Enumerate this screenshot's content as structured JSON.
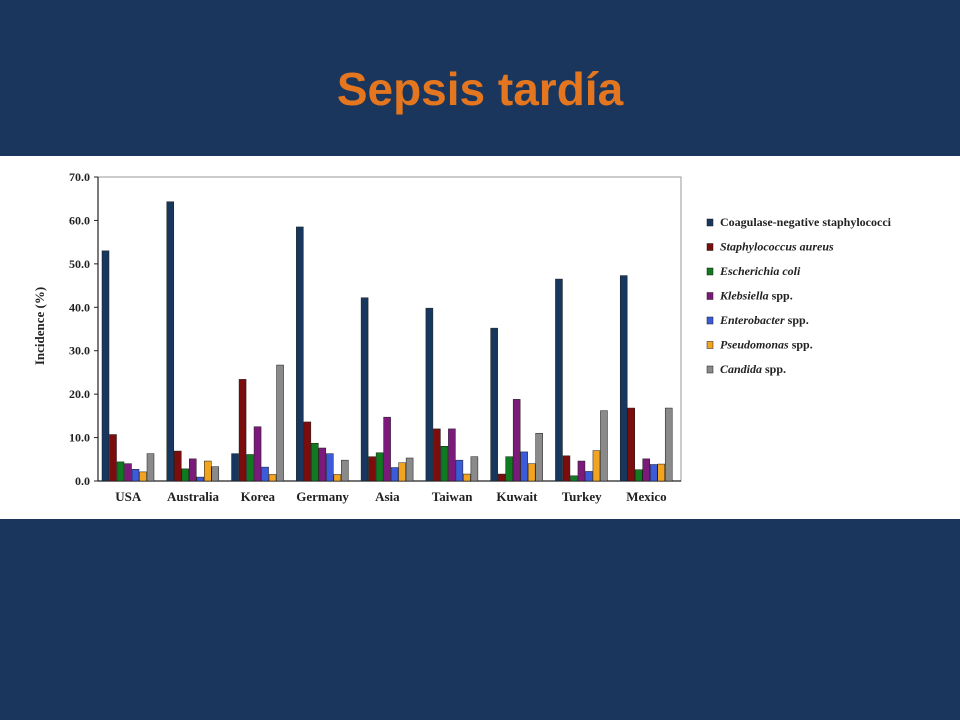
{
  "slide": {
    "title": "Sepsis tardía"
  },
  "chart_data": {
    "type": "bar",
    "ylabel": "Incidence (%)",
    "xlabel": "",
    "ylim": [
      0,
      70
    ],
    "yticks": [
      "0.0",
      "10.0",
      "20.0",
      "30.0",
      "40.0",
      "50.0",
      "60.0",
      "70.0"
    ],
    "grid": false,
    "legend_position": "right",
    "categories": [
      "USA",
      "Australia",
      "Korea",
      "Germany",
      "Asia",
      "Taiwan",
      "Kuwait",
      "Turkey",
      "Mexico"
    ],
    "series": [
      {
        "name": "Coagulase-negative staphylococci",
        "italic": "",
        "suffix": "",
        "color": "#17375e",
        "values": [
          53.0,
          64.3,
          6.3,
          58.5,
          42.2,
          39.8,
          35.2,
          46.5,
          47.3
        ]
      },
      {
        "name": "Staphylococcus aureus",
        "italic": "Staphylococcus aureus",
        "suffix": "",
        "color": "#7b0d0d",
        "values": [
          10.7,
          6.9,
          23.4,
          13.6,
          5.6,
          12.0,
          1.6,
          5.8,
          16.8
        ]
      },
      {
        "name": "Escherichia coli",
        "italic": "Escherichia coli",
        "suffix": "",
        "color": "#0f7a1f",
        "values": [
          4.4,
          2.8,
          6.1,
          8.7,
          6.5,
          8.0,
          5.6,
          1.2,
          2.6
        ]
      },
      {
        "name": "Klebsiella spp.",
        "italic": "Klebsiella",
        "suffix": " spp.",
        "color": "#7b1a7b",
        "values": [
          4.0,
          5.1,
          12.5,
          7.6,
          14.7,
          12.0,
          18.8,
          4.6,
          5.1
        ]
      },
      {
        "name": "Enterobacter spp.",
        "italic": "Enterobacter",
        "suffix": " spp.",
        "color": "#3b5bd9",
        "values": [
          2.7,
          0.9,
          3.2,
          6.3,
          3.1,
          4.8,
          6.7,
          2.2,
          3.8
        ]
      },
      {
        "name": "Pseudomonas spp.",
        "italic": "Pseudomonas",
        "suffix": " spp.",
        "color": "#f2a320",
        "values": [
          2.1,
          4.6,
          1.5,
          1.5,
          4.2,
          1.6,
          4.0,
          7.0,
          3.9
        ]
      },
      {
        "name": "Candida spp.",
        "italic": "Candida",
        "suffix": " spp.",
        "color": "#8a8a8a",
        "values": [
          6.3,
          3.3,
          26.7,
          4.8,
          5.3,
          5.6,
          11.0,
          16.2,
          16.8
        ]
      }
    ]
  }
}
